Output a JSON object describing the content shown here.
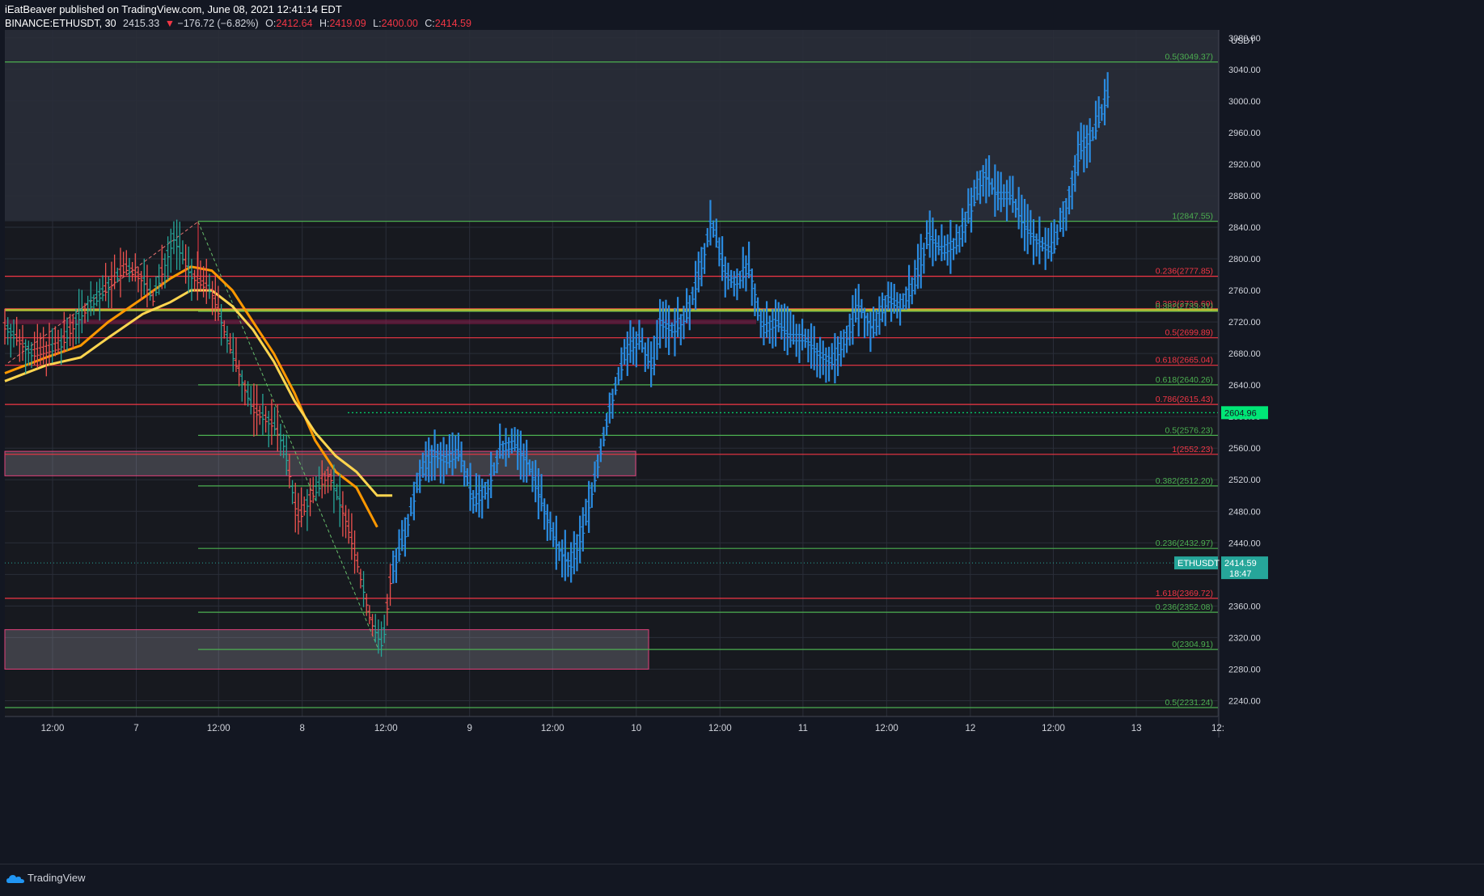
{
  "header": {
    "publisher_line": "iEatBeaver published on TradingView.com, June 08, 2021 12:41:14 EDT",
    "symbol": "BINANCE:ETHUSDT, 30",
    "last": "2415.33",
    "change": "−176.72 (−6.82%)",
    "o_label": "O:",
    "o_value": "2412.64",
    "h_label": "H:",
    "h_value": "2419.09",
    "l_label": "L:",
    "l_value": "2400.00",
    "c_label": "C:",
    "c_value": "2414.59"
  },
  "axis": {
    "currency": "USDT",
    "price_ticks": [
      "3080.00",
      "3040.00",
      "3000.00",
      "2960.00",
      "2920.00",
      "2880.00",
      "2840.00",
      "2800.00",
      "2760.00",
      "2720.00",
      "2680.00",
      "2640.00",
      "2600.00",
      "2560.00",
      "2520.00",
      "2480.00",
      "2440.00",
      "2400.00",
      "2360.00",
      "2320.00",
      "2280.00",
      "2240.00"
    ],
    "time_ticks": [
      "12:00",
      "7",
      "12:00",
      "8",
      "12:00",
      "9",
      "12:00",
      "10",
      "12:00",
      "11",
      "12:00",
      "12",
      "12:00",
      "13",
      "12:"
    ],
    "current_price_tag": {
      "symbol": "ETHUSDT",
      "price": "2414.59",
      "countdown": "18:47"
    },
    "alert_tag": "2604.96"
  },
  "colors": {
    "background": "#131722",
    "upper_zone": "#2a2e39",
    "fib_green": "#4caf50",
    "fib_red": "#f23645",
    "bar_blue": "#2a8be0",
    "ma_orange": "#ff9800",
    "ma_yellow": "#ffd54f",
    "zone_fill": "#b2b5be",
    "price_tag_teal": "#26a69a",
    "alert_green": "#00e676"
  },
  "chart_data": {
    "type": "ohlc_bar",
    "title": "BINANCE:ETHUSDT, 30",
    "ylim": [
      2220,
      3090
    ],
    "x_labels": [
      "12:00",
      "7",
      "12:00",
      "8",
      "12:00",
      "9",
      "12:00",
      "10",
      "12:00",
      "11",
      "12:00",
      "12",
      "12:00",
      "13",
      "12:"
    ],
    "fib_levels": [
      {
        "label": "0.5(3049.37)",
        "price": 3049.37,
        "color": "green"
      },
      {
        "label": "1(2847.55)",
        "price": 2847.55,
        "color": "green"
      },
      {
        "label": "0.236(2777.85)",
        "price": 2777.85,
        "color": "red"
      },
      {
        "label": "0.382(2736.60)",
        "price": 2736.6,
        "color": "red"
      },
      {
        "label": "0.382(2733.31)",
        "price": 2733.31,
        "color": "green"
      },
      {
        "label": "0.5(2699.89)",
        "price": 2699.89,
        "color": "red"
      },
      {
        "label": "0.618(2665.04)",
        "price": 2665.04,
        "color": "red"
      },
      {
        "label": "0.618(2640.26)",
        "price": 2640.26,
        "color": "green"
      },
      {
        "label": "0.786(2615.43)",
        "price": 2615.43,
        "color": "red"
      },
      {
        "label": "0.5(2576.23)",
        "price": 2576.23,
        "color": "green"
      },
      {
        "label": "1(2552.23)",
        "price": 2552.23,
        "color": "red"
      },
      {
        "label": "0.382(2512.20)",
        "price": 2512.2,
        "color": "green"
      },
      {
        "label": "0.236(2432.97)",
        "price": 2432.97,
        "color": "green"
      },
      {
        "label": "1.618(2369.72)",
        "price": 2369.72,
        "color": "red"
      },
      {
        "label": "0.236(2352.08)",
        "price": 2352.08,
        "color": "green"
      },
      {
        "label": "0(2304.91)",
        "price": 2304.91,
        "color": "green"
      },
      {
        "label": "0.5(2231.24)",
        "price": 2231.24,
        "color": "green"
      }
    ],
    "zones": [
      {
        "name": "supply-zone",
        "top": 2556,
        "bottom": 2525
      },
      {
        "name": "demand-zone",
        "top": 2330,
        "bottom": 2280
      }
    ],
    "price_path": [
      [
        0,
        2715
      ],
      [
        40,
        2680
      ],
      [
        80,
        2690
      ],
      [
        110,
        2730
      ],
      [
        150,
        2765
      ],
      [
        175,
        2790
      ],
      [
        200,
        2775
      ],
      [
        215,
        2750
      ],
      [
        230,
        2790
      ],
      [
        245,
        2828
      ],
      [
        270,
        2780
      ],
      [
        300,
        2760
      ],
      [
        330,
        2680
      ],
      [
        360,
        2610
      ],
      [
        390,
        2590
      ],
      [
        405,
        2565
      ],
      [
        425,
        2470
      ],
      [
        445,
        2500
      ],
      [
        470,
        2530
      ],
      [
        495,
        2470
      ],
      [
        510,
        2420
      ],
      [
        530,
        2345
      ],
      [
        548,
        2310
      ],
      [
        560,
        2400
      ],
      [
        580,
        2450
      ],
      [
        600,
        2520
      ],
      [
        620,
        2555
      ],
      [
        640,
        2545
      ],
      [
        660,
        2555
      ],
      [
        680,
        2490
      ],
      [
        700,
        2510
      ],
      [
        720,
        2560
      ],
      [
        740,
        2565
      ],
      [
        760,
        2540
      ],
      [
        780,
        2490
      ],
      [
        800,
        2440
      ],
      [
        820,
        2410
      ],
      [
        840,
        2460
      ],
      [
        860,
        2540
      ],
      [
        880,
        2620
      ],
      [
        900,
        2680
      ],
      [
        920,
        2700
      ],
      [
        940,
        2660
      ],
      [
        950,
        2720
      ],
      [
        970,
        2710
      ],
      [
        990,
        2730
      ],
      [
        1010,
        2790
      ],
      [
        1025,
        2850
      ],
      [
        1045,
        2780
      ],
      [
        1060,
        2770
      ],
      [
        1080,
        2790
      ],
      [
        1100,
        2710
      ],
      [
        1120,
        2720
      ],
      [
        1140,
        2700
      ],
      [
        1160,
        2700
      ],
      [
        1180,
        2680
      ],
      [
        1200,
        2670
      ],
      [
        1220,
        2700
      ],
      [
        1240,
        2740
      ],
      [
        1260,
        2710
      ],
      [
        1280,
        2750
      ],
      [
        1300,
        2740
      ],
      [
        1320,
        2770
      ],
      [
        1340,
        2830
      ],
      [
        1360,
        2810
      ],
      [
        1380,
        2820
      ],
      [
        1400,
        2860
      ],
      [
        1420,
        2910
      ],
      [
        1440,
        2880
      ],
      [
        1460,
        2880
      ],
      [
        1480,
        2840
      ],
      [
        1500,
        2820
      ],
      [
        1520,
        2810
      ],
      [
        1540,
        2870
      ],
      [
        1560,
        2940
      ],
      [
        1580,
        2960
      ],
      [
        1600,
        3010
      ]
    ],
    "ma_orange_path": [
      [
        0,
        2655
      ],
      [
        60,
        2675
      ],
      [
        110,
        2690
      ],
      [
        150,
        2720
      ],
      [
        200,
        2750
      ],
      [
        240,
        2775
      ],
      [
        270,
        2790
      ],
      [
        300,
        2785
      ],
      [
        330,
        2760
      ],
      [
        360,
        2720
      ],
      [
        390,
        2680
      ],
      [
        420,
        2630
      ],
      [
        450,
        2570
      ],
      [
        480,
        2530
      ],
      [
        510,
        2510
      ],
      [
        540,
        2460
      ]
    ],
    "ma_yellow_path": [
      [
        0,
        2645
      ],
      [
        60,
        2665
      ],
      [
        110,
        2675
      ],
      [
        150,
        2700
      ],
      [
        200,
        2730
      ],
      [
        240,
        2745
      ],
      [
        270,
        2760
      ],
      [
        300,
        2760
      ],
      [
        330,
        2740
      ],
      [
        360,
        2710
      ],
      [
        390,
        2670
      ],
      [
        420,
        2620
      ],
      [
        450,
        2580
      ],
      [
        480,
        2550
      ],
      [
        510,
        2530
      ],
      [
        540,
        2500
      ],
      [
        562,
        2500
      ]
    ]
  },
  "footer": {
    "brand": "TradingView"
  }
}
